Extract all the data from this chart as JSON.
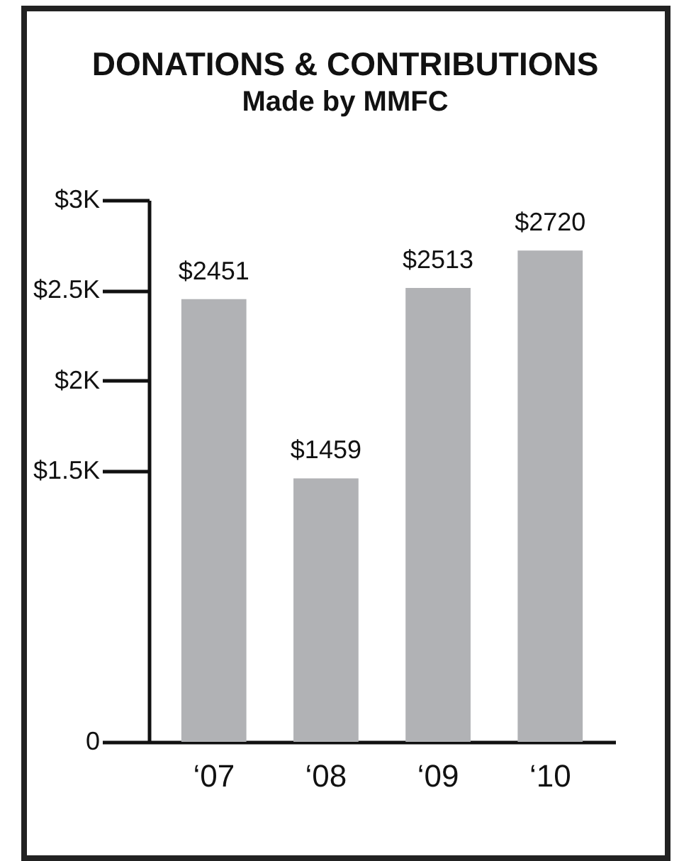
{
  "chart_data": {
    "type": "bar",
    "title": "DONATIONS & CONTRIBUTIONS",
    "subtitle": "Made by MMFC",
    "categories": [
      "‘07",
      "‘08",
      "‘09",
      "‘10"
    ],
    "values": [
      2451,
      1459,
      2513,
      2720
    ],
    "value_labels": [
      "$2451",
      "$1459",
      "$2513",
      "$2720"
    ],
    "color": "#b1b2b5",
    "ylim": [
      0,
      3000
    ],
    "yticks": [
      0,
      {
        "value": 1500,
        "label": "$1.5K"
      },
      {
        "value": 2000,
        "label": "$2K"
      },
      {
        "value": 2500,
        "label": "$2.5K"
      },
      {
        "value": 3000,
        "label": "$3K"
      }
    ],
    "grid": false
  }
}
